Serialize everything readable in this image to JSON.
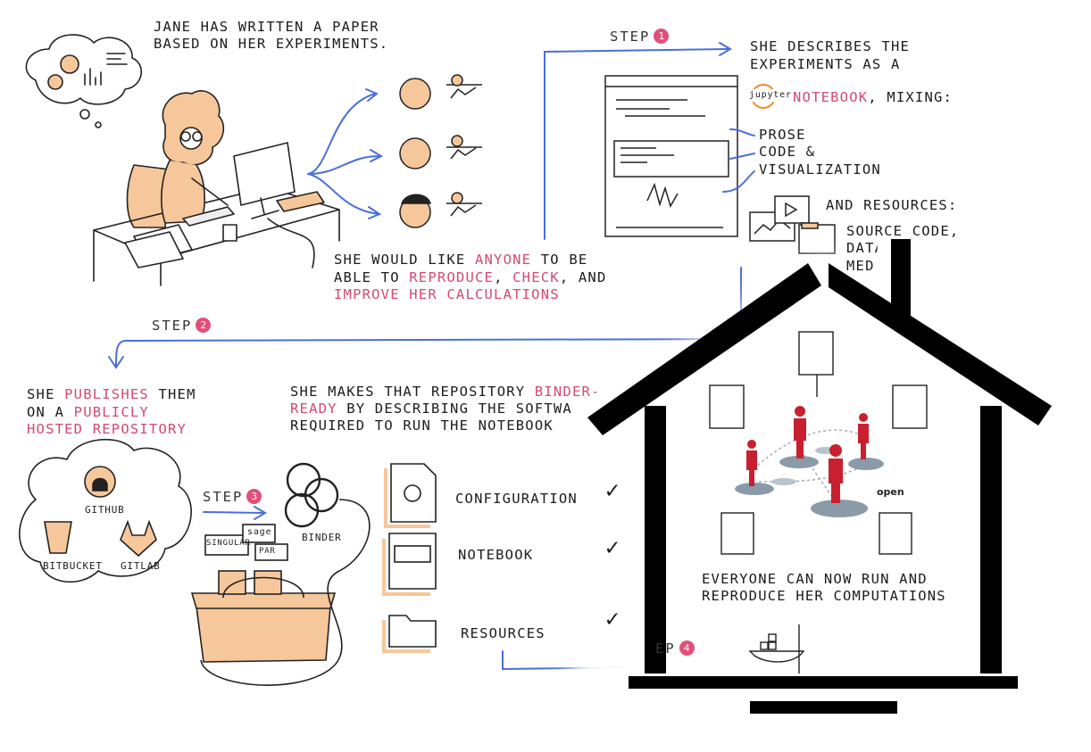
{
  "intro": {
    "line1": "JANE HAS WRITTEN A PAPER",
    "line2": "BASED ON HER EXPERIMENTS."
  },
  "reproduce": {
    "l1_a": "SHE WOULD LIKE ",
    "l1_b": "ANYONE",
    "l1_c": " TO BE",
    "l2_a": "ABLE TO ",
    "l2_b": "REPRODUCE",
    "l2_c": ", ",
    "l2_d": "CHECK",
    "l2_e": ", AND",
    "l3": "IMPROVE HER CALCULATIONS"
  },
  "step1": {
    "label": "STEP",
    "num": "1",
    "l1": "SHE DESCRIBES THE",
    "l2": "EXPERIMENTS AS A",
    "notebook": "NOTEBOOK",
    "mixing": ", MIXING:",
    "jupyter": "jupyter",
    "prose": "PROSE",
    "code": "CODE &",
    "viz": "VISUALIZATION",
    "resources": "AND RESOURCES:",
    "source": "SOURCE CODE,",
    "data": "DATA,",
    "media": "MEDIA"
  },
  "step2": {
    "label": "STEP",
    "num": "2",
    "l1_a": "SHE ",
    "l1_b": "PUBLISHES",
    "l1_c": " THEM",
    "l2_a": "ON A ",
    "l2_b": "PUBLICLY",
    "l3": "HOSTED REPOSITORY",
    "github": "GITHUB",
    "bitbucket": "BITBUCKET",
    "gitlab": "GITLAB"
  },
  "binder_ready": {
    "l1_a": "SHE MAKES THAT REPOSITORY ",
    "l1_b": "BINDER-",
    "l2_a": "READY",
    "l2_b": " BY DESCRIBING THE SOFTWA",
    "l3": "REQUIRED TO RUN THE NOTEBOOK"
  },
  "step3": {
    "label": "STEP",
    "num": "3",
    "binder": "BINDER",
    "tool1": "SINGULAR",
    "tool2": "sage",
    "tool3": "PAR"
  },
  "checklist": [
    {
      "label": "CONFIGURATION",
      "check": "✓"
    },
    {
      "label": "NOTEBOOK",
      "check": "✓"
    },
    {
      "label": "RESOURCES",
      "check": "✓"
    }
  ],
  "step4": {
    "label": "EP",
    "num": "4"
  },
  "house": {
    "open_label": "open",
    "l1": "EVERYONE CAN NOW RUN AND",
    "l2": "REPRODUCE HER COMPUTATIONS"
  },
  "colors": {
    "pink": "#d44a72",
    "blue": "#4a6fd9",
    "orange": "#f6c79a",
    "red_figure": "#c8202f",
    "disc": "#8a9aa8",
    "house": "#000000"
  }
}
